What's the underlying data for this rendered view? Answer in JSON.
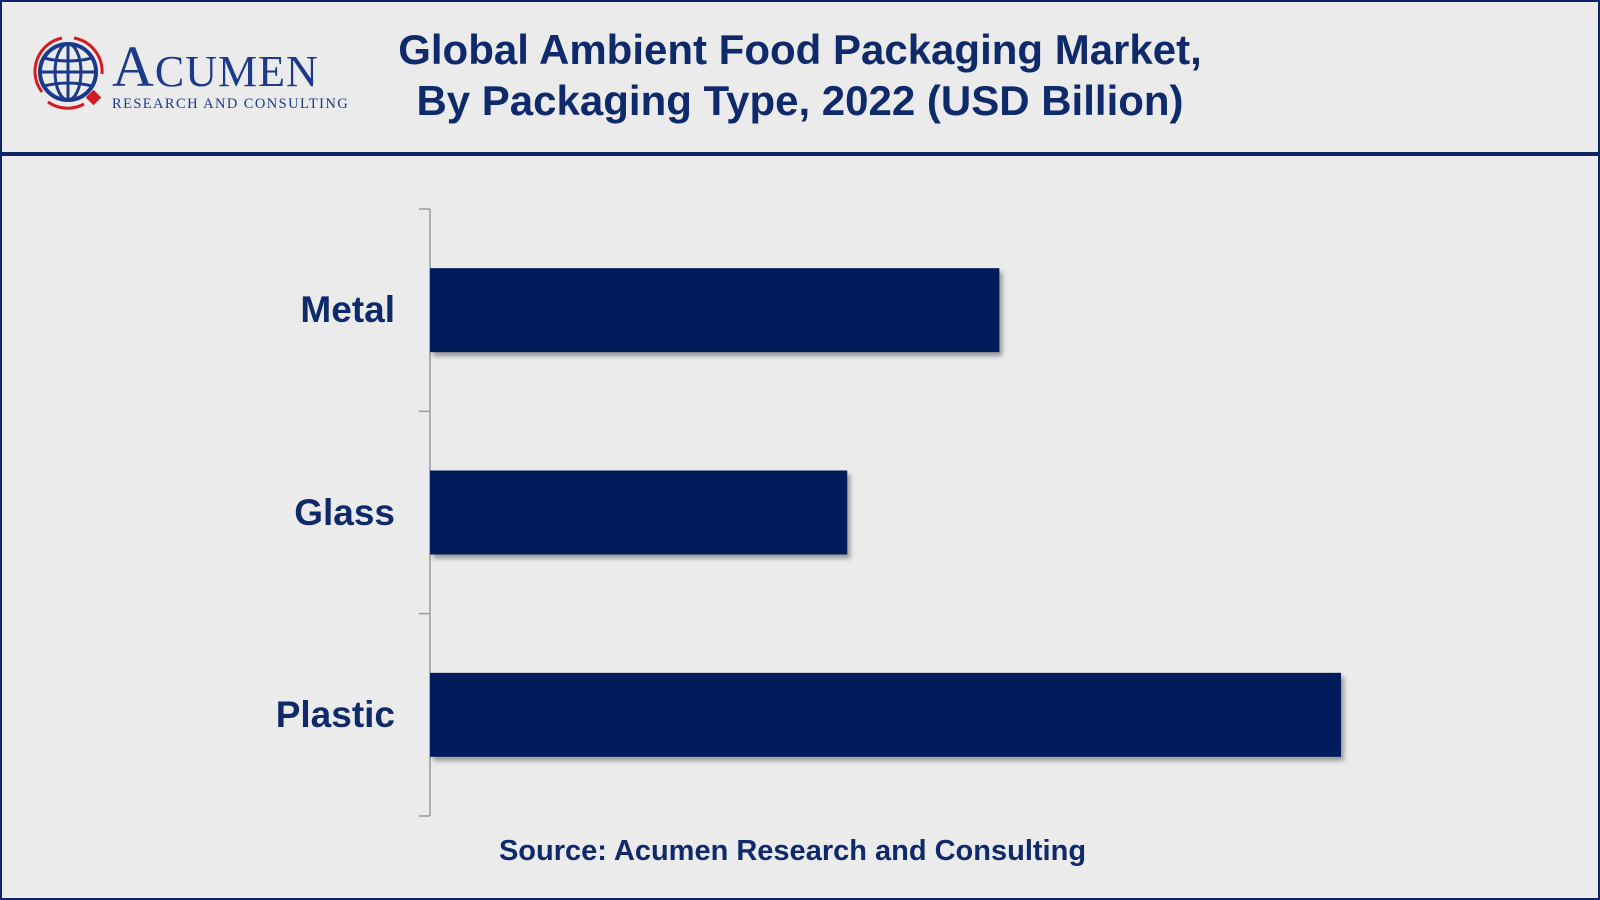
{
  "logo": {
    "word_first": "A",
    "word_rest": "CUMEN",
    "subtitle": "RESEARCH AND CONSULTING"
  },
  "title_line1": "Global Ambient Food Packaging Market,",
  "title_line2": "By Packaging Type, 2022 (USD Billion)",
  "source": "Source: Acumen Research and Consulting",
  "colors": {
    "bar": "#001c5a",
    "text": "#0f2a6b",
    "border": "#0d2466",
    "background": "#ebebeb",
    "logo_red": "#d71920"
  },
  "chart_data": {
    "type": "bar",
    "orientation": "horizontal",
    "title": "Global Ambient Food Packaging Market, By Packaging Type, 2022 (USD Billion)",
    "categories": [
      "Metal",
      "Glass",
      "Plastic"
    ],
    "values": [
      62.5,
      45.8,
      100
    ],
    "value_note": "relative lengths; no value axis printed",
    "xlim": [
      0,
      100
    ],
    "grid": false,
    "legend": "none"
  }
}
